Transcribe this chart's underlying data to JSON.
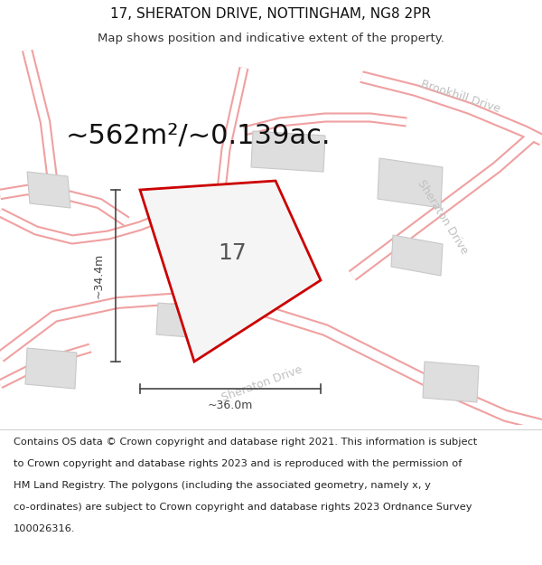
{
  "title": "17, SHERATON DRIVE, NOTTINGHAM, NG8 2PR",
  "subtitle": "Map shows position and indicative extent of the property.",
  "area_text": "~562m²/~0.139ac.",
  "property_number": "17",
  "dim_width": "~36.0m",
  "dim_height": "~34.4m",
  "bg_color": "#ffffff",
  "map_bg": "#f7f7f7",
  "road_fill": "#ffffff",
  "road_edge": "#f0a0a0",
  "block_color": "#e0e0e0",
  "block_edge": "#cccccc",
  "property_fill": "#f5f5f5",
  "property_edge": "#cc0000",
  "street_color": "#c0c0c0",
  "dim_color": "#444444",
  "title_fontsize": 11,
  "subtitle_fontsize": 9.5,
  "area_fontsize": 22,
  "prop_label_fontsize": 18,
  "footer_fontsize": 8.2,
  "street_fontsize": 9,
  "footer_lines": [
    "Contains OS data © Crown copyright and database right 2021. This information is subject",
    "to Crown copyright and database rights 2023 and is reproduced with the permission of",
    "HM Land Registry. The polygons (including the associated geometry, namely x, y",
    "co-ordinates) are subject to Crown copyright and database rights 2023 Ordnance Survey",
    "100026316."
  ]
}
